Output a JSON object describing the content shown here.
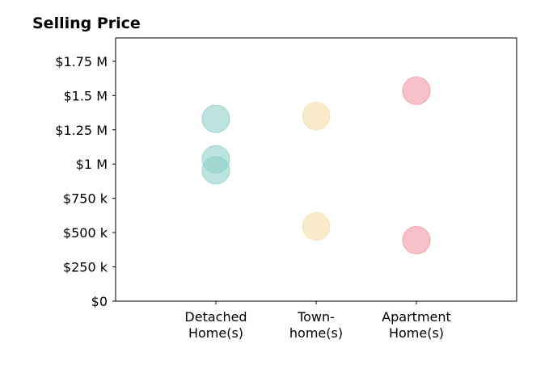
{
  "chart_data": {
    "type": "scatter",
    "title": "Selling Price",
    "xlabel": "",
    "ylabel": "",
    "categories": [
      [
        "Detached",
        "Home(s)"
      ],
      [
        "Town-",
        "home(s)"
      ],
      [
        "Apartment",
        "Home(s)"
      ]
    ],
    "xlim": [
      0,
      4
    ],
    "ylim": [
      0,
      1920000
    ],
    "yticks": [
      {
        "value": 0,
        "label": "$0"
      },
      {
        "value": 250000,
        "label": "$250 k"
      },
      {
        "value": 500000,
        "label": "$500 k"
      },
      {
        "value": 750000,
        "label": "$750 k"
      },
      {
        "value": 1000000,
        "label": "$1 M"
      },
      {
        "value": 1250000,
        "label": "$1.25 M"
      },
      {
        "value": 1500000,
        "label": "$1.5 M"
      },
      {
        "value": 1750000,
        "label": "$1.75 M"
      }
    ],
    "grid": false,
    "points": [
      {
        "category": 0,
        "value": 1330000,
        "color": "#8fd0c8"
      },
      {
        "category": 0,
        "value": 1035000,
        "color": "#8fd0c8"
      },
      {
        "category": 0,
        "value": 955000,
        "color": "#8fd0c8"
      },
      {
        "category": 1,
        "value": 1350000,
        "color": "#f5deaa"
      },
      {
        "category": 1,
        "value": 545000,
        "color": "#f5deaa"
      },
      {
        "category": 2,
        "value": 1535000,
        "color": "#f19aa2"
      },
      {
        "category": 2,
        "value": 445000,
        "color": "#f19aa2"
      }
    ],
    "colors": {
      "detached": "#8fd0c8",
      "townhome": "#f5deaa",
      "apartment": "#f19aa2"
    }
  }
}
